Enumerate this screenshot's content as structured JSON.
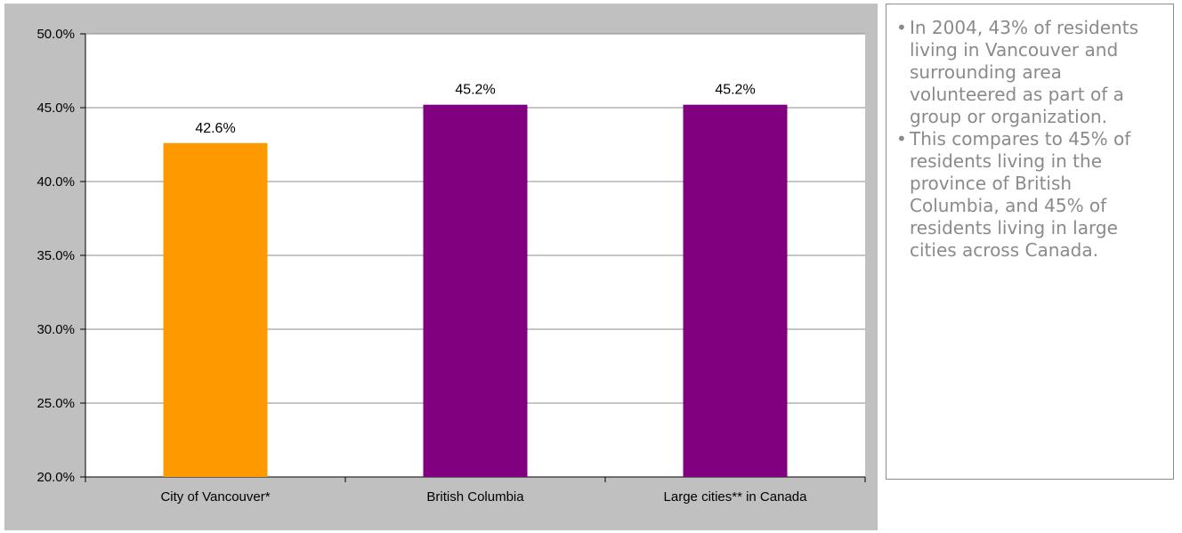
{
  "chart_data": {
    "type": "bar",
    "categories": [
      "City of Vancouver*",
      "British Columbia",
      "Large cities** in Canada"
    ],
    "values": [
      42.6,
      45.2,
      45.2
    ],
    "data_labels": [
      "42.6%",
      "45.2%",
      "45.2%"
    ],
    "bar_colors": [
      "#ff9900",
      "#800080",
      "#800080"
    ],
    "title": "",
    "xlabel": "",
    "ylabel": "",
    "ylim": [
      20.0,
      50.0
    ],
    "yticks": [
      20.0,
      25.0,
      30.0,
      35.0,
      40.0,
      45.0,
      50.0
    ],
    "ytick_labels": [
      "20.0%",
      "25.0%",
      "30.0%",
      "35.0%",
      "40.0%",
      "45.0%",
      "50.0%"
    ],
    "grid": true,
    "plot_background": "#ffffff",
    "panel_background": "#c0c0c0"
  },
  "notes": {
    "bullet_glyph": "•",
    "items": [
      "In 2004, 43% of residents living in Vancouver and surrounding area volunteered as part of a group or organization.",
      "This compares to 45% of residents living in the province of British Columbia, and 45% of residents living in large cities across Canada."
    ]
  }
}
